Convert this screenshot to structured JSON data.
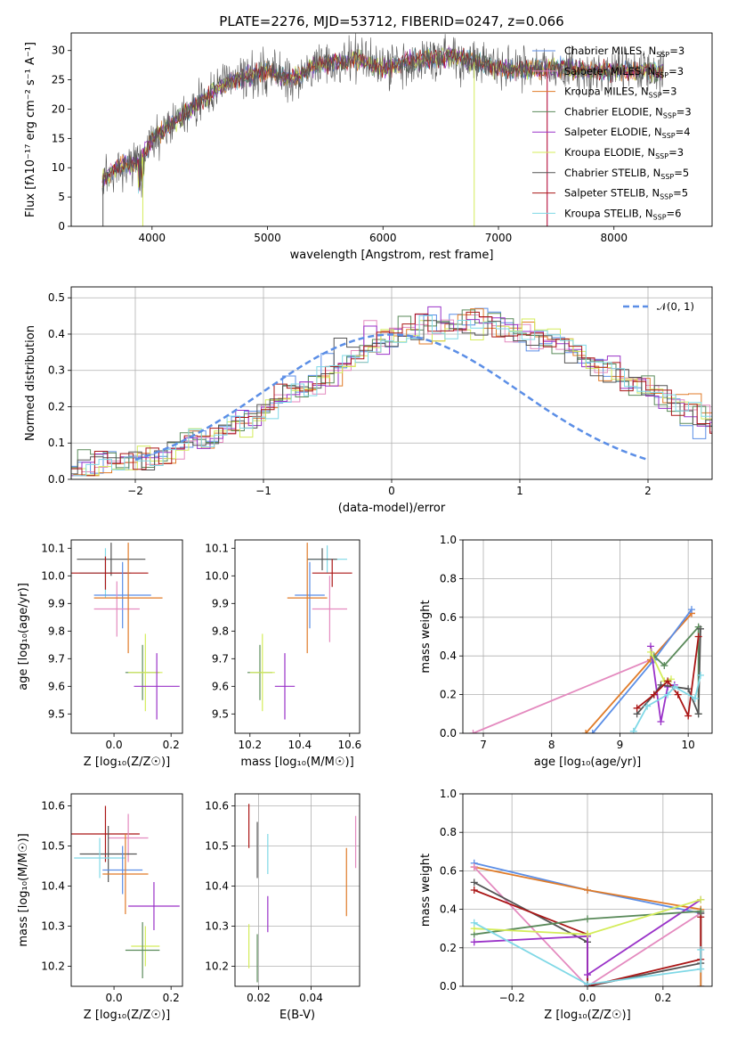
{
  "title": "PLATE=2276, MJD=53712, FIBERID=0247, z=0.066",
  "colors": {
    "chabrier_miles": "#5b8ee6",
    "salpeter_miles": "#e48abf",
    "kroupa_miles": "#e07b28",
    "chabrier_elodie": "#5a8a5a",
    "salpeter_elodie": "#9a32c8",
    "kroupa_elodie": "#d4ec5a",
    "chabrier_stelib": "#555555",
    "salpeter_stelib": "#aa1616",
    "kroupa_stelib": "#7fd8e6"
  },
  "chart_data": [
    {
      "type": "line",
      "title": "PLATE=2276, MJD=53712, FIBERID=0247, z=0.066",
      "xlabel": "wavelength [Angstrom, rest frame]",
      "ylabel": "Flux [fλ10⁻¹⁷ erg cm⁻² s⁻¹ A⁻¹]",
      "xlim": [
        3300,
        8850
      ],
      "ylim": [
        0,
        33
      ],
      "xticks": [
        "4000",
        "5000",
        "6000",
        "7000",
        "8000"
      ],
      "yticks": [
        "0",
        "5",
        "10",
        "15",
        "20",
        "25",
        "30"
      ],
      "grid": false,
      "legend_position": "right",
      "series": [
        {
          "name": "Chabrier MILES, N_SSP=3",
          "color": "#5b8ee6"
        },
        {
          "name": "Salpeter MILES, N_SSP=3",
          "color": "#e48abf"
        },
        {
          "name": "Kroupa MILES, N_SSP=3",
          "color": "#e07b28"
        },
        {
          "name": "Chabrier ELODIE, N_SSP=3",
          "color": "#5a8a5a"
        },
        {
          "name": "Salpeter ELODIE, N_SSP=4",
          "color": "#9a32c8"
        },
        {
          "name": "Kroupa ELODIE, N_SSP=3",
          "color": "#d4ec5a"
        },
        {
          "name": "Chabrier STELIB, N_SSP=5",
          "color": "#555555"
        },
        {
          "name": "Salpeter STELIB, N_SSP=5",
          "color": "#aa1616"
        },
        {
          "name": "Kroupa STELIB, N_SSP=6",
          "color": "#7fd8e6"
        }
      ],
      "spectrum_envelope": {
        "x": [
          3570,
          3700,
          3900,
          4000,
          4200,
          4400,
          4600,
          4800,
          5000,
          5200,
          5400,
          5600,
          5800,
          6000,
          6200,
          6400,
          6600,
          6800,
          7000,
          7200,
          7400,
          7600,
          7800,
          8000,
          8200,
          8400,
          8450
        ],
        "y": [
          8,
          10,
          11,
          15,
          18,
          21,
          24,
          25.5,
          26.5,
          25,
          27.5,
          28,
          28.5,
          27,
          28,
          28.5,
          29,
          28,
          27,
          26.5,
          27,
          27,
          26.5,
          26.5,
          26.5,
          26.5,
          26.5
        ]
      }
    },
    {
      "type": "area",
      "xlabel": "(data-model)/error",
      "ylabel": "Normed distribution",
      "xlim": [
        -2.5,
        2.5
      ],
      "ylim": [
        0,
        0.53
      ],
      "xticks": [
        "−2",
        "−1",
        "0",
        "1",
        "2"
      ],
      "yticks": [
        "0.0",
        "0.1",
        "0.2",
        "0.3",
        "0.4",
        "0.5"
      ],
      "grid": true,
      "legend_label": "𝒩(0, 1)",
      "legend_position": "top-right",
      "normal_curve": {
        "mean": 0,
        "sigma": 1,
        "x_range": [
          -2,
          2
        ]
      },
      "histogram_bin_width": 0.1,
      "histogram_base": [
        0.03,
        0.035,
        0.035,
        0.04,
        0.045,
        0.05,
        0.06,
        0.07,
        0.085,
        0.1,
        0.11,
        0.125,
        0.14,
        0.16,
        0.18,
        0.2,
        0.22,
        0.24,
        0.26,
        0.285,
        0.3,
        0.32,
        0.335,
        0.35,
        0.365,
        0.38,
        0.39,
        0.4,
        0.41,
        0.42,
        0.43,
        0.43,
        0.43,
        0.42,
        0.41,
        0.4,
        0.39,
        0.38,
        0.365,
        0.35,
        0.33,
        0.315,
        0.3,
        0.28,
        0.26,
        0.245,
        0.225,
        0.205,
        0.185,
        0.165,
        0.15,
        0.13,
        0.115,
        0.1,
        0.085,
        0.075,
        0.065,
        0.055,
        0.05,
        0.045,
        0.04,
        0.035,
        0.03
      ]
    },
    {
      "type": "scatter",
      "xlabel": "Z [log₁₀(Z/Z☉)]",
      "ylabel": "age  [log₁₀(age/yr)]",
      "xlim": [
        -0.15,
        0.24
      ],
      "ylim": [
        9.43,
        10.13
      ],
      "xticks": [
        "0.0",
        "0.2"
      ],
      "yticks": [
        "9.5",
        "9.6",
        "9.7",
        "9.8",
        "9.9",
        "10.0",
        "10.1"
      ],
      "grid": false,
      "points": [
        {
          "series": "kroupa_stelib",
          "x": -0.03,
          "y": 10.01,
          "ex": 0.09,
          "ey": 0.09
        },
        {
          "series": "chabrier_stelib",
          "x": -0.01,
          "y": 10.06,
          "ex": 0.12,
          "ey": 0.06
        },
        {
          "series": "salpeter_stelib",
          "x": -0.03,
          "y": 10.01,
          "ex": 0.15,
          "ey": 0.06
        },
        {
          "series": "chabrier_miles",
          "x": 0.03,
          "y": 9.93,
          "ex": 0.1,
          "ey": 0.12
        },
        {
          "series": "salpeter_miles",
          "x": 0.01,
          "y": 9.88,
          "ex": 0.08,
          "ey": 0.1
        },
        {
          "series": "kroupa_miles",
          "x": 0.05,
          "y": 9.92,
          "ex": 0.12,
          "ey": 0.2
        },
        {
          "series": "chabrier_elodie",
          "x": 0.1,
          "y": 9.65,
          "ex": 0.06,
          "ey": 0.1
        },
        {
          "series": "kroupa_elodie",
          "x": 0.11,
          "y": 9.65,
          "ex": 0.06,
          "ey": 0.14
        },
        {
          "series": "salpeter_elodie",
          "x": 0.15,
          "y": 9.6,
          "ex": 0.08,
          "ey": 0.12
        }
      ]
    },
    {
      "type": "scatter",
      "xlabel": "mass [log₁₀(M/M☉)]",
      "ylabel": "",
      "xlim": [
        10.14,
        10.64
      ],
      "ylim": [
        9.43,
        10.13
      ],
      "xticks": [
        "10.2",
        "10.4",
        "10.6"
      ],
      "yticks": [
        "9.5",
        "9.6",
        "9.7",
        "9.8",
        "9.9",
        "10.0",
        "10.1"
      ],
      "grid": false,
      "points": [
        {
          "series": "kroupa_stelib",
          "x": 10.51,
          "y": 10.06,
          "ex": 0.08,
          "ey": 0.05
        },
        {
          "series": "chabrier_stelib",
          "x": 10.49,
          "y": 10.06,
          "ex": 0.06,
          "ey": 0.04
        },
        {
          "series": "salpeter_stelib",
          "x": 10.53,
          "y": 10.01,
          "ex": 0.08,
          "ey": 0.05
        },
        {
          "series": "chabrier_miles",
          "x": 10.44,
          "y": 9.93,
          "ex": 0.06,
          "ey": 0.12
        },
        {
          "series": "salpeter_miles",
          "x": 10.52,
          "y": 9.88,
          "ex": 0.07,
          "ey": 0.12
        },
        {
          "series": "kroupa_miles",
          "x": 10.43,
          "y": 9.92,
          "ex": 0.08,
          "ey": 0.2
        },
        {
          "series": "chabrier_elodie",
          "x": 10.24,
          "y": 9.65,
          "ex": 0.05,
          "ey": 0.1
        },
        {
          "series": "kroupa_elodie",
          "x": 10.25,
          "y": 9.65,
          "ex": 0.05,
          "ey": 0.14
        },
        {
          "series": "salpeter_elodie",
          "x": 10.34,
          "y": 9.6,
          "ex": 0.04,
          "ey": 0.12
        }
      ]
    },
    {
      "type": "line",
      "xlabel": "age  [log₁₀(age/yr)]",
      "ylabel": "mass weight",
      "xlim": [
        6.7,
        10.35
      ],
      "ylim": [
        0,
        1.0
      ],
      "xticks": [
        "7",
        "8",
        "9",
        "10"
      ],
      "yticks": [
        "0.0",
        "0.2",
        "0.4",
        "0.6",
        "0.8",
        "1.0"
      ],
      "grid": true,
      "series": [
        {
          "series": "salpeter_miles",
          "x": [
            6.85,
            9.45,
            10.05
          ],
          "y": [
            0.0,
            0.38,
            0.62
          ]
        },
        {
          "series": "kroupa_miles",
          "x": [
            8.5,
            9.45,
            10.05
          ],
          "y": [
            0.0,
            0.38,
            0.62
          ]
        },
        {
          "series": "chabrier_miles",
          "x": [
            8.6,
            9.5,
            10.05
          ],
          "y": [
            0.0,
            0.38,
            0.64
          ]
        },
        {
          "series": "salpeter_elodie",
          "x": [
            9.45,
            9.6,
            9.7,
            9.8
          ],
          "y": [
            0.45,
            0.06,
            0.24,
            0.25
          ]
        },
        {
          "series": "chabrier_elodie",
          "x": [
            9.5,
            9.65,
            10.15,
            10.15
          ],
          "y": [
            0.4,
            0.35,
            0.55,
            0.1
          ]
        },
        {
          "series": "kroupa_elodie",
          "x": [
            9.45,
            9.65,
            9.75
          ],
          "y": [
            0.42,
            0.27,
            0.28
          ]
        },
        {
          "series": "chabrier_stelib",
          "x": [
            9.25,
            9.5,
            9.6,
            10.0,
            10.15,
            10.18
          ],
          "y": [
            0.1,
            0.2,
            0.25,
            0.23,
            0.1,
            0.54
          ]
        },
        {
          "series": "salpeter_stelib",
          "x": [
            9.25,
            9.5,
            9.7,
            9.85,
            10.0,
            10.15
          ],
          "y": [
            0.13,
            0.2,
            0.27,
            0.2,
            0.09,
            0.5
          ]
        },
        {
          "series": "kroupa_stelib",
          "x": [
            9.2,
            9.4,
            9.7,
            9.8,
            10.1,
            10.18
          ],
          "y": [
            0.01,
            0.14,
            0.2,
            0.24,
            0.18,
            0.3
          ]
        }
      ]
    },
    {
      "type": "scatter",
      "xlabel": "Z [log₁₀(Z/Z☉)]",
      "ylabel": "mass [log₁₀(M/M☉)]",
      "xlim": [
        -0.15,
        0.24
      ],
      "ylim": [
        10.15,
        10.63
      ],
      "xticks": [
        "0.0",
        "0.2"
      ],
      "yticks": [
        "10.2",
        "10.3",
        "10.4",
        "10.5",
        "10.6"
      ],
      "grid": false,
      "points": [
        {
          "series": "salpeter_stelib",
          "x": -0.03,
          "y": 10.53,
          "ex": 0.12,
          "ey": 0.07
        },
        {
          "series": "salpeter_miles",
          "x": 0.05,
          "y": 10.52,
          "ex": 0.07,
          "ey": 0.06
        },
        {
          "series": "chabrier_stelib",
          "x": -0.02,
          "y": 10.48,
          "ex": 0.1,
          "ey": 0.07
        },
        {
          "series": "kroupa_stelib",
          "x": -0.05,
          "y": 10.47,
          "ex": 0.09,
          "ey": 0.05
        },
        {
          "series": "chabrier_miles",
          "x": 0.03,
          "y": 10.44,
          "ex": 0.07,
          "ey": 0.06
        },
        {
          "series": "kroupa_miles",
          "x": 0.04,
          "y": 10.43,
          "ex": 0.08,
          "ey": 0.1
        },
        {
          "series": "salpeter_elodie",
          "x": 0.14,
          "y": 10.35,
          "ex": 0.09,
          "ey": 0.06
        },
        {
          "series": "kroupa_elodie",
          "x": 0.11,
          "y": 10.25,
          "ex": 0.05,
          "ey": 0.05
        },
        {
          "series": "chabrier_elodie",
          "x": 0.1,
          "y": 10.24,
          "ex": 0.06,
          "ey": 0.07
        }
      ]
    },
    {
      "type": "scatter",
      "xlabel": "E(B-V)",
      "ylabel": "",
      "xlim": [
        0.011,
        0.0585
      ],
      "ylim": [
        10.15,
        10.63
      ],
      "xticks": [
        "0.02",
        "0.04"
      ],
      "yticks": [
        "10.2",
        "10.3",
        "10.4",
        "10.5",
        "10.6"
      ],
      "grid": true,
      "points": [
        {
          "series": "salpeter_stelib",
          "x": 0.0163,
          "y": 10.55,
          "ey": 0.055
        },
        {
          "series": "kroupa_elodie",
          "x": 0.0163,
          "y": 10.25,
          "ey": 0.055
        },
        {
          "series": "chabrier_stelib",
          "x": 0.0195,
          "y": 10.49,
          "ey": 0.07
        },
        {
          "series": "chabrier_elodie",
          "x": 0.0195,
          "y": 10.22,
          "ey": 0.06
        },
        {
          "series": "kroupa_stelib",
          "x": 0.0235,
          "y": 10.48,
          "ey": 0.05
        },
        {
          "series": "salpeter_elodie",
          "x": 0.0235,
          "y": 10.33,
          "ey": 0.045
        },
        {
          "series": "kroupa_miles",
          "x": 0.0535,
          "y": 10.41,
          "ey": 0.085
        },
        {
          "series": "salpeter_miles",
          "x": 0.057,
          "y": 10.51,
          "ey": 0.065
        }
      ]
    },
    {
      "type": "line",
      "xlabel": "Z [log₁₀(Z/Z☉)]",
      "ylabel": "mass weight",
      "xlim": [
        -0.33,
        0.33
      ],
      "ylim": [
        0,
        1.0
      ],
      "xticks": [
        "−0.2",
        "0.0",
        "0.2"
      ],
      "yticks": [
        "0.0",
        "0.2",
        "0.4",
        "0.6",
        "0.8",
        "1.0"
      ],
      "grid": true,
      "series": [
        {
          "series": "chabrier_miles",
          "x": [
            -0.3,
            0.0,
            0.3,
            0.3
          ],
          "y": [
            0.64,
            0.5,
            0.38,
            0.0
          ]
        },
        {
          "series": "kroupa_miles",
          "x": [
            -0.3,
            0.0,
            0.3,
            0.3
          ],
          "y": [
            0.62,
            0.5,
            0.4,
            0.0
          ]
        },
        {
          "series": "salpeter_miles",
          "x": [
            -0.3,
            0.0,
            0.3
          ],
          "y": [
            0.62,
            0.0,
            0.38
          ]
        },
        {
          "series": "chabrier_stelib",
          "x": [
            -0.3,
            0.0,
            0.0,
            0.3,
            0.3
          ],
          "y": [
            0.54,
            0.23,
            0.0,
            0.12,
            0.38
          ]
        },
        {
          "series": "salpeter_stelib",
          "x": [
            -0.3,
            0.0,
            0.0,
            0.3,
            0.3
          ],
          "y": [
            0.5,
            0.27,
            0.0,
            0.14,
            0.36
          ]
        },
        {
          "series": "salpeter_elodie",
          "x": [
            -0.3,
            0.0,
            0.0,
            0.3
          ],
          "y": [
            0.23,
            0.26,
            0.06,
            0.45
          ]
        },
        {
          "series": "chabrier_elodie",
          "x": [
            -0.3,
            0.0,
            0.3
          ],
          "y": [
            0.27,
            0.35,
            0.39
          ]
        },
        {
          "series": "kroupa_elodie",
          "x": [
            -0.3,
            0.0,
            0.3
          ],
          "y": [
            0.3,
            0.27,
            0.45
          ]
        },
        {
          "series": "kroupa_stelib",
          "x": [
            -0.3,
            0.0,
            0.3,
            0.3
          ],
          "y": [
            0.33,
            0.01,
            0.09,
            0.19
          ]
        }
      ]
    }
  ]
}
